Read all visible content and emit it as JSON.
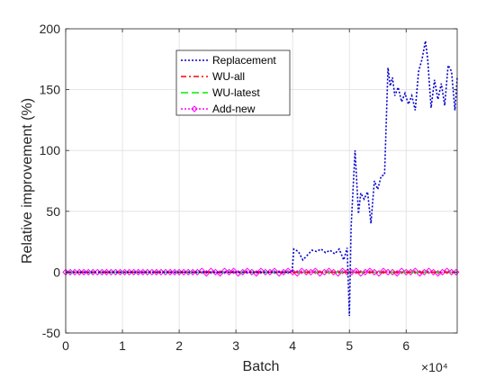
{
  "chart_data": {
    "type": "line",
    "title": "",
    "xlabel": "Batch",
    "ylabel": "Relative improvement (%)",
    "x_exponent_label": "×10⁴",
    "xlim": [
      0,
      6.9
    ],
    "ylim": [
      -50,
      200
    ],
    "xticks": [
      0,
      1,
      2,
      3,
      4,
      5,
      6
    ],
    "yticks": [
      -50,
      0,
      50,
      100,
      150,
      200
    ],
    "x_unit_multiplier": 10000,
    "grid": true,
    "legend_position": "top-center",
    "series": [
      {
        "name": "Replacement",
        "color": "#0000cc",
        "dash": "2,2",
        "marker": "none",
        "x": [
          0,
          3.99,
          4.02,
          4.1,
          4.18,
          4.26,
          4.34,
          4.42,
          4.5,
          4.58,
          4.66,
          4.74,
          4.82,
          4.9,
          4.96,
          5.0,
          5.03,
          5.1,
          5.16,
          5.2,
          5.26,
          5.32,
          5.38,
          5.44,
          5.5,
          5.56,
          5.62,
          5.68,
          5.72,
          5.76,
          5.8,
          5.86,
          5.92,
          5.98,
          6.04,
          6.1,
          6.16,
          6.22,
          6.28,
          6.34,
          6.38,
          6.44,
          6.5,
          6.56,
          6.62,
          6.68,
          6.74,
          6.8,
          6.86,
          6.9
        ],
        "y": [
          0,
          0,
          19,
          17,
          10,
          14,
          18,
          17,
          19,
          16,
          18,
          15,
          19,
          10,
          20,
          -36,
          37,
          100,
          48,
          65,
          60,
          66,
          40,
          75,
          68,
          79,
          80,
          168,
          153,
          160,
          145,
          152,
          140,
          147,
          138,
          145,
          133,
          165,
          175,
          190,
          175,
          135,
          158,
          142,
          155,
          137,
          170,
          165,
          133,
          160
        ]
      },
      {
        "name": "WU-all",
        "color": "#ff0000",
        "dash": "6,3,2,3",
        "marker": "none",
        "x": [
          0,
          6.9
        ],
        "y": [
          0,
          0
        ]
      },
      {
        "name": "WU-latest",
        "color": "#00ee00",
        "dash": "8,4",
        "marker": "none",
        "x": [
          0,
          6.9
        ],
        "y": [
          0,
          0
        ]
      },
      {
        "name": "Add-new",
        "color": "#ff00ff",
        "dash": "2,2",
        "marker": "diamond",
        "x": [
          0,
          0.08,
          0.16,
          0.24,
          0.32,
          0.4,
          0.48,
          0.56,
          0.64,
          0.72,
          0.8,
          0.88,
          0.96,
          1.04,
          1.12,
          1.2,
          1.28,
          1.36,
          1.44,
          1.52,
          1.6,
          1.68,
          1.76,
          1.84,
          1.92,
          2.0,
          2.08,
          2.16,
          2.24,
          2.32,
          2.4,
          2.48,
          2.56,
          2.64,
          2.72,
          2.8,
          2.88,
          2.96,
          3.04,
          3.12,
          3.2,
          3.28,
          3.36,
          3.44,
          3.52,
          3.6,
          3.68,
          3.76,
          3.84,
          3.92,
          4.0,
          4.08,
          4.16,
          4.24,
          4.32,
          4.4,
          4.48,
          4.56,
          4.64,
          4.72,
          4.8,
          4.88,
          4.96,
          5.04,
          5.12,
          5.2,
          5.28,
          5.36,
          5.44,
          5.52,
          5.6,
          5.68,
          5.76,
          5.84,
          5.92,
          6.0,
          6.08,
          6.16,
          6.24,
          6.32,
          6.4,
          6.48,
          6.56,
          6.64,
          6.72,
          6.8,
          6.88
        ],
        "y": [
          0,
          0,
          0,
          0,
          0,
          0,
          0,
          0,
          0,
          0,
          0,
          0,
          0,
          0,
          0,
          0,
          0,
          0,
          0,
          0,
          0,
          0,
          0,
          0,
          0,
          0,
          0,
          0,
          0,
          0,
          1,
          -1,
          1,
          0,
          -1,
          1,
          0,
          1,
          -1,
          0,
          1,
          0,
          -1,
          1,
          0,
          0,
          1,
          -1,
          0,
          1,
          0,
          -1,
          1,
          0,
          0,
          1,
          -1,
          0,
          1,
          0,
          -1,
          1,
          0,
          0,
          1,
          -1,
          0,
          1,
          0,
          -1,
          1,
          0,
          0,
          -1,
          1,
          0,
          0,
          1,
          -1,
          0,
          1,
          0,
          -1,
          0,
          1,
          0,
          0
        ]
      }
    ]
  }
}
